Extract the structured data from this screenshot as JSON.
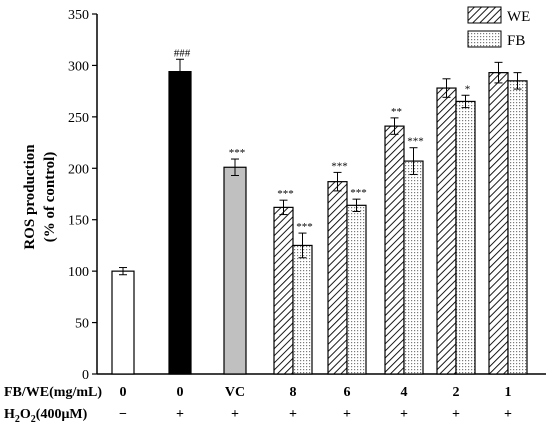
{
  "chart_data": {
    "type": "bar",
    "ylabel_line1": "ROS production",
    "ylabel_line2": "(% of control)",
    "ylim": [
      0,
      350
    ],
    "yticks": [
      0,
      50,
      100,
      150,
      200,
      250,
      300,
      350
    ],
    "grid": false,
    "legend_position": "top-right",
    "legend": [
      {
        "name": "WE",
        "pattern": "hatch"
      },
      {
        "name": "FB",
        "pattern": "dots"
      }
    ],
    "row_labels": {
      "dose_prefix": "FB/WE(mg/mL)",
      "h2o2_prefix": "H",
      "h2o2_sub1": "2",
      "h2o2_mid": "O",
      "h2o2_sub2": "2",
      "h2o2_suffix": "(400μM)"
    },
    "groups": [
      {
        "dose": "0",
        "h2o2": "−",
        "bars": [
          {
            "series": "control",
            "value": 100,
            "error": 3.5,
            "fill": "#ffffff",
            "sig": ""
          }
        ]
      },
      {
        "dose": "0",
        "h2o2": "+",
        "bars": [
          {
            "series": "H2O2",
            "value": 294,
            "error": 12,
            "fill": "#000000",
            "sig": "###"
          }
        ]
      },
      {
        "dose": "VC",
        "h2o2": "+",
        "bars": [
          {
            "series": "VC",
            "value": 201,
            "error": 8,
            "fill": "#c0c0c0",
            "sig": "***"
          }
        ]
      },
      {
        "dose": "8",
        "h2o2": "+",
        "bars": [
          {
            "series": "WE",
            "value": 162,
            "error": 7,
            "sig": "***"
          },
          {
            "series": "FB",
            "value": 125,
            "error": 12,
            "sig": "***"
          }
        ]
      },
      {
        "dose": "6",
        "h2o2": "+",
        "bars": [
          {
            "series": "WE",
            "value": 187,
            "error": 9,
            "sig": "***"
          },
          {
            "series": "FB",
            "value": 164,
            "error": 6,
            "sig": "***"
          }
        ]
      },
      {
        "dose": "4",
        "h2o2": "+",
        "bars": [
          {
            "series": "WE",
            "value": 241,
            "error": 8,
            "sig": "**"
          },
          {
            "series": "FB",
            "value": 207,
            "error": 13,
            "sig": "***"
          }
        ]
      },
      {
        "dose": "2",
        "h2o2": "+",
        "bars": [
          {
            "series": "WE",
            "value": 278,
            "error": 9,
            "sig": ""
          },
          {
            "series": "FB",
            "value": 265,
            "error": 6,
            "sig": "*"
          }
        ]
      },
      {
        "dose": "1",
        "h2o2": "+",
        "bars": [
          {
            "series": "WE",
            "value": 293,
            "error": 10,
            "sig": ""
          },
          {
            "series": "FB",
            "value": 285,
            "error": 8,
            "sig": ""
          }
        ]
      }
    ]
  }
}
